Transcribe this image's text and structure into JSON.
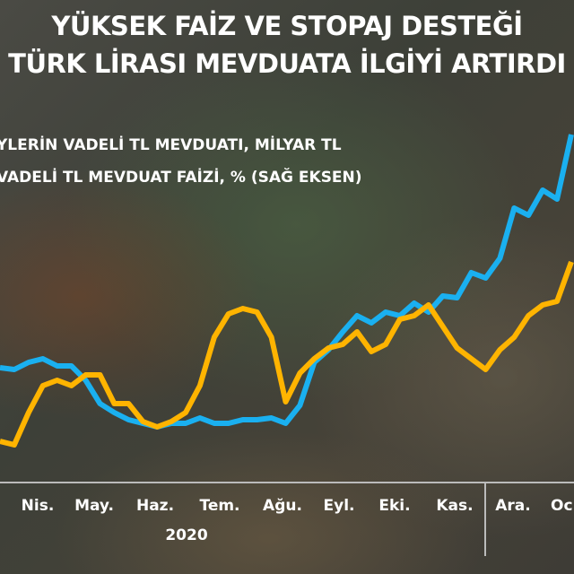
{
  "title_lines": [
    "YÜKSEK FAİZ VE STOPAJ DESTEĞİ",
    "TÜRK LİRASI MEVDUATA İLGİYİ ARTIRDI"
  ],
  "chart_data": {
    "type": "line",
    "title": "YÜKSEK FAİZ VE STOPAJ DESTEĞİ TÜRK LİRASI MEVDUATA İLGİYİ ARTIRDI",
    "x_tick_labels": [
      "Nis.",
      "May.",
      "Haz.",
      "Tem.",
      "Ağu.",
      "Eyl.",
      "Eki.",
      "Kas.",
      "Ara.",
      "Oc"
    ],
    "x_group_label": "2020",
    "grid": false,
    "legend_placement": "top-left",
    "series": [
      {
        "name": "YLERİN VADELİ TL MEVDUATI, MİLYAR TL",
        "color": "#1ab0f0",
        "values": [
          32.5,
          32,
          34,
          35,
          33,
          33,
          29,
          22.5,
          20,
          18,
          17,
          16,
          17,
          17,
          18.5,
          17,
          17,
          18,
          18,
          18.5,
          17,
          22,
          34,
          37.5,
          42.5,
          47,
          45,
          48,
          47,
          50.5,
          48,
          52.5,
          52,
          59,
          57.5,
          63,
          77,
          75,
          82,
          79.5,
          97.5
        ]
      },
      {
        "name": "VADELİ TL MEVDUAT FAİZİ, % (SAĞ EKSEN)",
        "color": "#ffb400",
        "values": [
          12,
          11,
          20,
          27.5,
          29,
          27.5,
          30.5,
          30.5,
          22.5,
          22.5,
          17.5,
          16,
          17.5,
          20,
          27.5,
          41,
          47.5,
          49,
          48,
          41,
          23,
          31,
          35,
          38,
          39,
          42.5,
          37,
          39,
          46,
          47,
          50,
          44,
          38,
          35,
          32,
          37.5,
          41,
          47,
          50,
          51,
          62
        ]
      }
    ]
  }
}
